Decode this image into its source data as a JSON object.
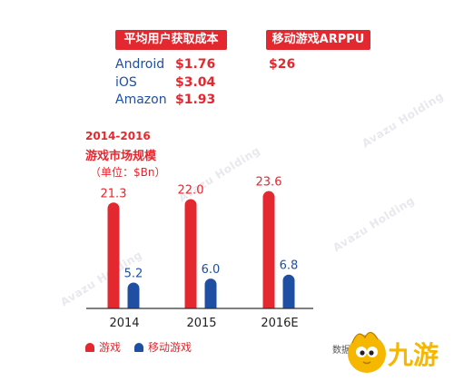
{
  "header": {
    "cpa_label": "平均用户获取成本",
    "arppu_label": "移动游戏ARPPU"
  },
  "cpa": [
    {
      "platform": "Android",
      "value": "$1.76"
    },
    {
      "platform": "iOS",
      "value": "$3.04"
    },
    {
      "platform": "Amazon",
      "value": "$1.93"
    }
  ],
  "arppu_value": "$26",
  "market": {
    "period": "2014-2016",
    "title": "游戏市场规模",
    "unit": "（单位：$Bn）"
  },
  "watermark": "Avazu Holding",
  "colors": {
    "games": "#e4282f",
    "mobile_games": "#1f4fa3"
  },
  "chart_data": {
    "type": "bar",
    "categories": [
      "2014",
      "2015",
      "2016E"
    ],
    "series": [
      {
        "name": "游戏",
        "values": [
          21.3,
          22.0,
          23.6
        ]
      },
      {
        "name": "移动游戏",
        "values": [
          5.2,
          6.0,
          6.8
        ]
      }
    ],
    "value_labels": [
      [
        "21.3",
        "22.0",
        "23.6"
      ],
      [
        "5.2",
        "6.0",
        "6.8"
      ]
    ],
    "ylim": [
      0,
      25
    ],
    "grid": false,
    "legend": "bottom-left"
  },
  "legend": {
    "games": "游戏",
    "mobile_games": "移动游戏"
  },
  "source_text": "数据",
  "logo": {
    "text": "九游"
  }
}
